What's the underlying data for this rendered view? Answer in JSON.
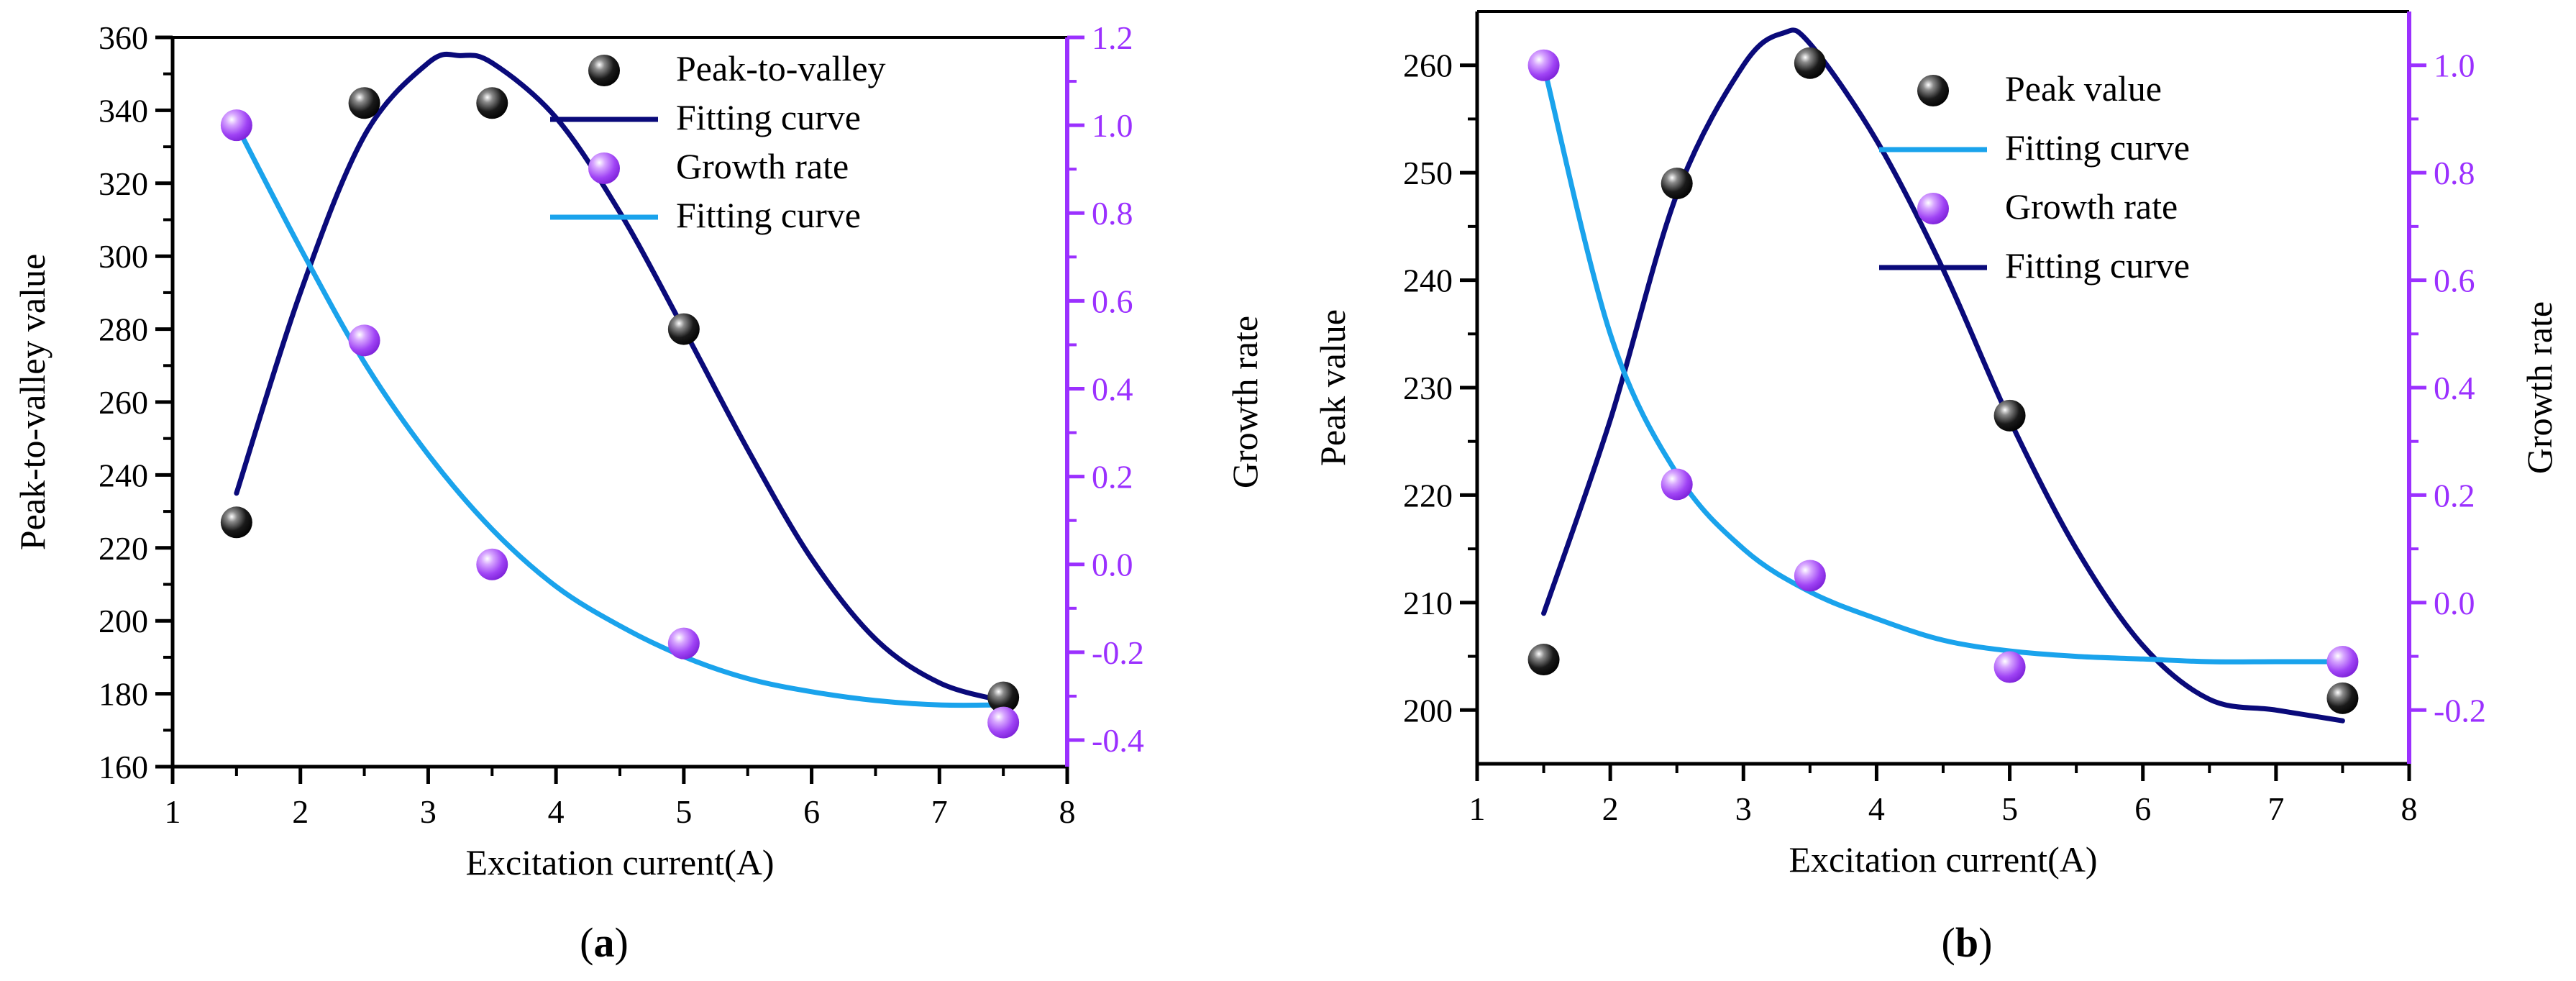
{
  "colors": {
    "peak_marker": "#111111",
    "growth_marker": "#9b30ff",
    "right_axis": "#9b30ff",
    "navy_curve": "#0a0a7a",
    "light_curve": "#1aa3ec"
  },
  "chart_data": [
    {
      "type": "scatter",
      "panel_label": "(a)",
      "xlabel": "Excitation current(A)",
      "ylabel": "Peak-to-valley value",
      "y2label": "Growth rate",
      "xlim": [
        1,
        8
      ],
      "ylim": [
        160,
        360
      ],
      "y2lim": [
        -0.4606,
        1.2
      ],
      "xticks": [
        1,
        2,
        3,
        4,
        5,
        6,
        7,
        8
      ],
      "yticks": [
        160,
        180,
        200,
        220,
        240,
        260,
        280,
        300,
        320,
        340,
        360
      ],
      "y2ticks": [
        -0.4,
        -0.2,
        0.0,
        0.2,
        0.4,
        0.6,
        0.8,
        1.0,
        1.2
      ],
      "xtick_labels": [
        "1",
        "2",
        "3",
        "4",
        "5",
        "6",
        "7",
        "8"
      ],
      "ytick_labels": [
        "160",
        "180",
        "200",
        "220",
        "240",
        "260",
        "280",
        "300",
        "320",
        "340",
        "360"
      ],
      "y2tick_labels": [
        "-0.4",
        "-0.2",
        "0.0",
        "0.2",
        "0.4",
        "0.6",
        "0.8",
        "1.0",
        "1.2"
      ],
      "legend": [
        {
          "label": "Peak-to-valley",
          "kind": "marker",
          "style": "peak"
        },
        {
          "label": "Fitting curve",
          "kind": "line",
          "style": "navy"
        },
        {
          "label": "Growth rate",
          "kind": "marker",
          "style": "growth"
        },
        {
          "label": "Fitting curve",
          "kind": "line",
          "style": "light"
        }
      ],
      "series": [
        {
          "name": "Peak-to-valley",
          "axis": "left",
          "style": "peak",
          "x": [
            1.5,
            2.5,
            3.5,
            5.0,
            7.5
          ],
          "y": [
            227,
            342,
            342,
            280,
            179
          ]
        },
        {
          "name": "Fitting curve",
          "axis": "left",
          "style": "navy",
          "fit": "gauss",
          "x": [
            1.5,
            2.0,
            2.5,
            3.0,
            3.25,
            3.5,
            4.0,
            4.5,
            5.0,
            5.5,
            6.0,
            6.5,
            7.0,
            7.5
          ],
          "y": [
            235,
            290,
            333,
            353,
            355,
            353,
            338,
            312,
            280,
            247,
            217,
            195,
            183,
            178
          ]
        },
        {
          "name": "Growth rate",
          "axis": "right",
          "style": "growth",
          "x": [
            1.5,
            2.5,
            3.5,
            5.0,
            7.5
          ],
          "y": [
            1.0,
            0.51,
            0.0,
            -0.18,
            -0.36
          ]
        },
        {
          "name": "Fitting curve",
          "axis": "right",
          "style": "light",
          "fit": "exp",
          "x": [
            1.5,
            2.0,
            2.5,
            3.0,
            3.5,
            4.0,
            4.5,
            5.0,
            5.5,
            6.0,
            6.5,
            7.0,
            7.5
          ],
          "y": [
            1.0,
            0.72,
            0.46,
            0.25,
            0.08,
            -0.05,
            -0.14,
            -0.21,
            -0.26,
            -0.29,
            -0.31,
            -0.32,
            -0.32
          ]
        }
      ]
    },
    {
      "type": "scatter",
      "panel_label": "(b)",
      "xlabel": "Excitation current(A)",
      "ylabel": "Peak value",
      "y2label": "Growth rate",
      "xlim": [
        1,
        8
      ],
      "ylim": [
        195,
        265
      ],
      "y2lim": [
        -0.3,
        1.1
      ],
      "xticks": [
        1,
        2,
        3,
        4,
        5,
        6,
        7,
        8
      ],
      "yticks": [
        200,
        210,
        220,
        230,
        240,
        250,
        260
      ],
      "y2ticks": [
        -0.2,
        0.0,
        0.2,
        0.4,
        0.6,
        0.8,
        1.0
      ],
      "xtick_labels": [
        "1",
        "2",
        "3",
        "4",
        "5",
        "6",
        "7",
        "8"
      ],
      "ytick_labels": [
        "200",
        "210",
        "220",
        "230",
        "240",
        "250",
        "260"
      ],
      "y2tick_labels": [
        "-0.2",
        "0.0",
        "0.2",
        "0.4",
        "0.6",
        "0.8",
        "1.0"
      ],
      "legend": [
        {
          "label": "Peak value",
          "kind": "marker",
          "style": "peak"
        },
        {
          "label": "Fitting curve",
          "kind": "line",
          "style": "light"
        },
        {
          "label": "Growth rate",
          "kind": "marker",
          "style": "growth"
        },
        {
          "label": "Fitting curve",
          "kind": "line",
          "style": "navy"
        }
      ],
      "series": [
        {
          "name": "Peak value",
          "axis": "left",
          "style": "peak",
          "x": [
            1.5,
            2.5,
            3.5,
            5.0,
            7.5
          ],
          "y": [
            204.7,
            249.0,
            260.2,
            227.4,
            201.1
          ]
        },
        {
          "name": "Fitting curve",
          "axis": "left",
          "style": "navy",
          "fit": "gauss",
          "x": [
            1.5,
            2.0,
            2.5,
            3.0,
            3.3,
            3.5,
            4.0,
            4.5,
            5.0,
            5.5,
            6.0,
            6.5,
            7.0,
            7.5
          ],
          "y": [
            209,
            227,
            248,
            260,
            263,
            262,
            253,
            241,
            227,
            215,
            206,
            201,
            200,
            199
          ]
        },
        {
          "name": "Growth rate",
          "axis": "right",
          "style": "growth",
          "x": [
            1.5,
            2.5,
            3.5,
            5.0,
            7.5
          ],
          "y": [
            1.0,
            0.22,
            0.05,
            -0.12,
            -0.11
          ]
        },
        {
          "name": "Fitting curve",
          "axis": "right",
          "style": "light",
          "fit": "exp",
          "x": [
            1.5,
            2.0,
            2.5,
            3.0,
            3.5,
            4.0,
            4.5,
            5.0,
            5.5,
            6.0,
            6.5,
            7.0,
            7.5
          ],
          "y": [
            1.0,
            0.5,
            0.24,
            0.1,
            0.02,
            -0.03,
            -0.07,
            -0.09,
            -0.1,
            -0.105,
            -0.11,
            -0.11,
            -0.11
          ]
        }
      ]
    }
  ]
}
